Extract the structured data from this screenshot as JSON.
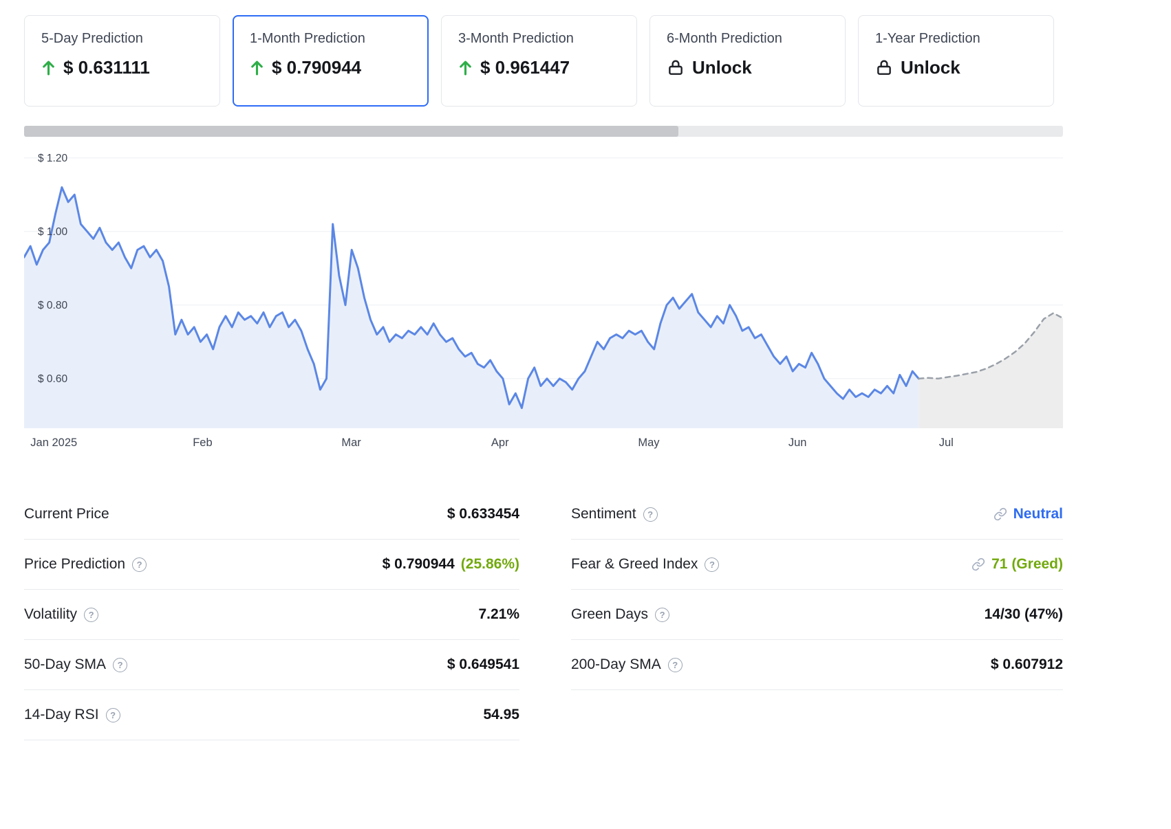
{
  "cards": [
    {
      "title": "5-Day Prediction",
      "value": "$ 0.631111",
      "trend": "up"
    },
    {
      "title": "1-Month Prediction",
      "value": "$ 0.790944",
      "trend": "up",
      "selected": true
    },
    {
      "title": "3-Month Prediction",
      "value": "$ 0.961447",
      "trend": "up"
    },
    {
      "title": "6-Month Prediction",
      "value": "Unlock",
      "locked": true
    },
    {
      "title": "1-Year Prediction",
      "value": "Unlock",
      "locked": true
    }
  ],
  "chart_scrollbar": {
    "thumb_percent": 63
  },
  "chart_data": {
    "type": "area",
    "title": "",
    "xlabel": "",
    "ylabel": "",
    "grid": true,
    "legend": false,
    "x_range": [
      -0.2,
      6.785
    ],
    "ylim": [
      0.465,
      1.235
    ],
    "y_ticks": [
      {
        "label": "$ 1.20",
        "value": 1.2
      },
      {
        "label": "$ 1.00",
        "value": 1.0
      },
      {
        "label": "$ 0.80",
        "value": 0.8
      },
      {
        "label": "$ 0.60",
        "value": 0.6
      }
    ],
    "x_axis": {
      "labels": [
        "Jan 2025",
        "Feb",
        "Mar",
        "Apr",
        "May",
        "Jun",
        "Jul"
      ],
      "positions": [
        0,
        1,
        2,
        3,
        4,
        5,
        6
      ]
    },
    "series": [
      {
        "name": "price-history",
        "line_style": "solid",
        "color": "#5b87e5",
        "fill": "#e9effa",
        "x_start": -0.2,
        "x_end": 5.815,
        "values": [
          0.93,
          0.96,
          0.91,
          0.95,
          0.97,
          1.05,
          1.12,
          1.08,
          1.1,
          1.02,
          1.0,
          0.98,
          1.01,
          0.97,
          0.95,
          0.97,
          0.93,
          0.9,
          0.95,
          0.96,
          0.93,
          0.95,
          0.92,
          0.85,
          0.72,
          0.76,
          0.72,
          0.74,
          0.7,
          0.72,
          0.68,
          0.74,
          0.77,
          0.74,
          0.78,
          0.76,
          0.77,
          0.75,
          0.78,
          0.74,
          0.77,
          0.78,
          0.74,
          0.76,
          0.73,
          0.68,
          0.64,
          0.57,
          0.6,
          1.02,
          0.88,
          0.8,
          0.95,
          0.9,
          0.82,
          0.76,
          0.72,
          0.74,
          0.7,
          0.72,
          0.71,
          0.73,
          0.72,
          0.74,
          0.72,
          0.75,
          0.72,
          0.7,
          0.71,
          0.68,
          0.66,
          0.67,
          0.64,
          0.63,
          0.65,
          0.62,
          0.6,
          0.53,
          0.56,
          0.52,
          0.6,
          0.63,
          0.58,
          0.6,
          0.58,
          0.6,
          0.59,
          0.57,
          0.6,
          0.62,
          0.66,
          0.7,
          0.68,
          0.71,
          0.72,
          0.71,
          0.73,
          0.72,
          0.73,
          0.7,
          0.68,
          0.75,
          0.8,
          0.82,
          0.79,
          0.81,
          0.83,
          0.78,
          0.76,
          0.74,
          0.77,
          0.75,
          0.8,
          0.77,
          0.73,
          0.74,
          0.71,
          0.72,
          0.69,
          0.66,
          0.64,
          0.66,
          0.62,
          0.64,
          0.63,
          0.67,
          0.64,
          0.6,
          0.58,
          0.56,
          0.545,
          0.57,
          0.55,
          0.56,
          0.55,
          0.57,
          0.56,
          0.58,
          0.56,
          0.61,
          0.58,
          0.62,
          0.6
        ]
      },
      {
        "name": "price-forecast",
        "line_style": "dashed",
        "color": "#9aa0a8",
        "fill": "#ededee",
        "x_start": 5.815,
        "x_end": 6.785,
        "values": [
          0.6,
          0.602,
          0.6,
          0.604,
          0.608,
          0.613,
          0.618,
          0.627,
          0.639,
          0.654,
          0.672,
          0.695,
          0.726,
          0.762,
          0.778,
          0.764
        ]
      }
    ]
  },
  "stats_left": [
    {
      "label": "Current Price",
      "value": "$ 0.633454"
    },
    {
      "label": "Price Prediction",
      "help": true,
      "value": "$ 0.790944",
      "value_suffix": "(25.86%)"
    },
    {
      "label": "Volatility",
      "help": true,
      "value": "7.21%"
    },
    {
      "label": "50-Day SMA",
      "help": true,
      "value": "$ 0.649541"
    },
    {
      "label": "14-Day RSI",
      "help": true,
      "value": "54.95"
    }
  ],
  "stats_right": [
    {
      "label": "Sentiment",
      "help": true,
      "value": "Neutral",
      "style": "link-blue"
    },
    {
      "label": "Fear & Greed Index",
      "help": true,
      "value": "71 (Greed)",
      "style": "link-green"
    },
    {
      "label": "Green Days",
      "help": true,
      "value": "14/30 (47%)"
    },
    {
      "label": "200-Day SMA",
      "help": true,
      "value": "$ 0.607912"
    }
  ],
  "colors": {
    "accent_blue": "#2e6cf6",
    "link_blue": "#2e6bf0",
    "arrow_green": "#2fae49",
    "text_green": "#72a90d",
    "line_blue": "#5b87e5",
    "area_blue": "#e9effa",
    "forecast_gray": "#9aa0a8",
    "forecast_area": "#ededee"
  }
}
